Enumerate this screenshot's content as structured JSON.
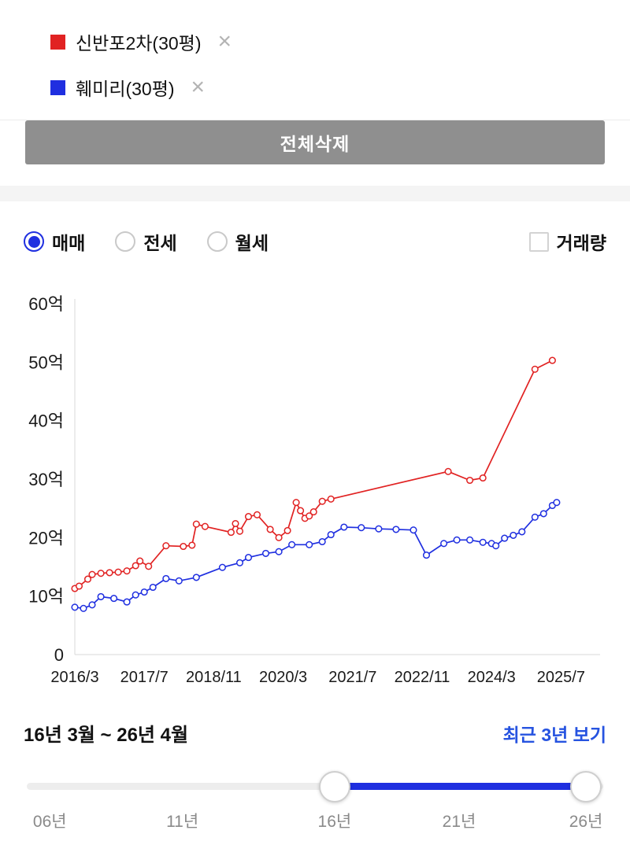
{
  "colors": {
    "red": "#e12222",
    "blue": "#1f2fe0",
    "link_blue": "#2653e0",
    "button_gray": "#8f8f8f"
  },
  "legend": {
    "remove_icon": "×",
    "items": [
      {
        "label": "신반포2차(30평)",
        "color": "#e12222"
      },
      {
        "label": "훼미리(30평)",
        "color": "#1f2fe0"
      }
    ]
  },
  "delete_all_button": "전체삭제",
  "filters": {
    "options": [
      {
        "label": "매매",
        "selected": true
      },
      {
        "label": "전세",
        "selected": false
      },
      {
        "label": "월세",
        "selected": false
      }
    ],
    "volume_checkbox": {
      "label": "거래량",
      "checked": false
    }
  },
  "chart_data": {
    "type": "line",
    "unit": "억",
    "ylim": [
      0,
      60
    ],
    "x_domain_months": [
      0,
      121
    ],
    "y_ticks": [
      {
        "v": 60,
        "label": "60억"
      },
      {
        "v": 50,
        "label": "50억"
      },
      {
        "v": 40,
        "label": "40억"
      },
      {
        "v": 30,
        "label": "30억"
      },
      {
        "v": 20,
        "label": "20억"
      },
      {
        "v": 10,
        "label": "10억"
      },
      {
        "v": 0,
        "label": "0"
      }
    ],
    "x_ticks": [
      {
        "m": 0,
        "label": "2016/3"
      },
      {
        "m": 16,
        "label": "2017/7"
      },
      {
        "m": 32,
        "label": "2018/11"
      },
      {
        "m": 48,
        "label": "2020/3"
      },
      {
        "m": 64,
        "label": "2021/7"
      },
      {
        "m": 80,
        "label": "2022/11"
      },
      {
        "m": 96,
        "label": "2024/3"
      },
      {
        "m": 112,
        "label": "2025/7"
      }
    ],
    "series": [
      {
        "name": "신반포2차(30평)",
        "color": "#e12222",
        "points": [
          [
            0,
            11.3
          ],
          [
            1,
            11.7
          ],
          [
            3,
            12.9
          ],
          [
            4,
            13.7
          ],
          [
            6,
            13.9
          ],
          [
            8,
            14.0
          ],
          [
            10,
            14.1
          ],
          [
            12,
            14.3
          ],
          [
            14,
            15.2
          ],
          [
            15,
            16.0
          ],
          [
            17,
            15.1
          ],
          [
            21,
            18.6
          ],
          [
            25,
            18.5
          ],
          [
            27,
            18.7
          ],
          [
            28,
            22.3
          ],
          [
            30,
            21.9
          ],
          [
            36,
            20.9
          ],
          [
            37,
            22.4
          ],
          [
            38,
            21.1
          ],
          [
            40,
            23.6
          ],
          [
            42,
            23.9
          ],
          [
            45,
            21.4
          ],
          [
            47,
            20.0
          ],
          [
            49,
            21.2
          ],
          [
            51,
            26.0
          ],
          [
            52,
            24.6
          ],
          [
            53,
            23.3
          ],
          [
            54,
            23.7
          ],
          [
            55,
            24.4
          ],
          [
            57,
            26.2
          ],
          [
            59,
            26.6
          ],
          [
            86,
            31.3
          ],
          [
            91,
            29.8
          ],
          [
            94,
            30.2
          ],
          [
            106,
            48.8
          ],
          [
            110,
            50.3
          ]
        ]
      },
      {
        "name": "훼미리(30평)",
        "color": "#1f2fe0",
        "points": [
          [
            0,
            8.1
          ],
          [
            2,
            7.9
          ],
          [
            4,
            8.5
          ],
          [
            6,
            9.9
          ],
          [
            9,
            9.6
          ],
          [
            12,
            9.0
          ],
          [
            14,
            10.2
          ],
          [
            16,
            10.7
          ],
          [
            18,
            11.5
          ],
          [
            21,
            13.0
          ],
          [
            24,
            12.6
          ],
          [
            28,
            13.2
          ],
          [
            34,
            14.9
          ],
          [
            38,
            15.7
          ],
          [
            40,
            16.6
          ],
          [
            44,
            17.3
          ],
          [
            47,
            17.6
          ],
          [
            50,
            18.8
          ],
          [
            54,
            18.8
          ],
          [
            57,
            19.3
          ],
          [
            59,
            20.5
          ],
          [
            62,
            21.8
          ],
          [
            66,
            21.7
          ],
          [
            70,
            21.5
          ],
          [
            74,
            21.4
          ],
          [
            78,
            21.3
          ],
          [
            81,
            17.0
          ],
          [
            85,
            19.0
          ],
          [
            88,
            19.6
          ],
          [
            91,
            19.6
          ],
          [
            94,
            19.2
          ],
          [
            96,
            19.0
          ],
          [
            97,
            18.6
          ],
          [
            99,
            19.9
          ],
          [
            101,
            20.4
          ],
          [
            103,
            21.0
          ],
          [
            106,
            23.5
          ],
          [
            108,
            24.1
          ],
          [
            110,
            25.5
          ],
          [
            111,
            26.0
          ]
        ]
      }
    ]
  },
  "range": {
    "label": "16년 3월 ~ 26년 4월",
    "recent_link": "최근 3년 보기",
    "slider": {
      "labels": [
        "06년",
        "11년",
        "16년",
        "21년",
        "26년"
      ]
    }
  }
}
